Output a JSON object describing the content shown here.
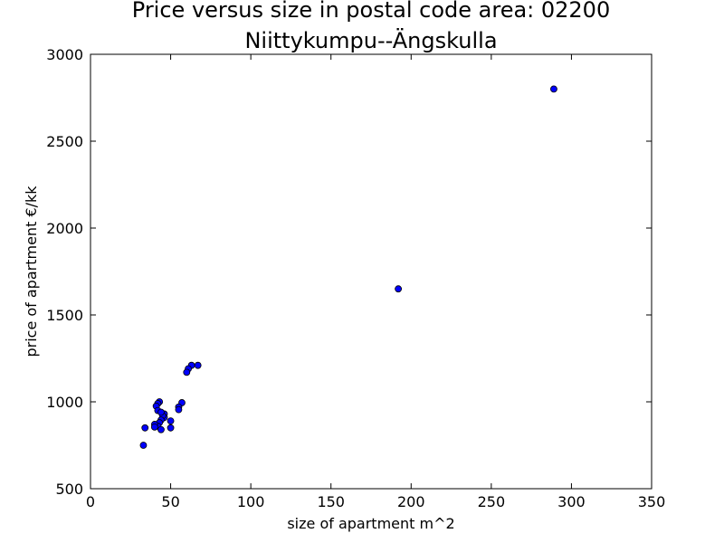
{
  "chart_data": {
    "type": "scatter",
    "title": "Price versus size in postal code area: 02200",
    "subtitle": "Niittykumpu--Ängskulla",
    "xlabel": "size of apartment m^2",
    "ylabel": "price of apartment €/kk",
    "xlim": [
      0,
      350
    ],
    "ylim": [
      500,
      3000
    ],
    "xticks": [
      0,
      50,
      100,
      150,
      200,
      250,
      300,
      350
    ],
    "yticks": [
      500,
      1000,
      1500,
      2000,
      2500,
      3000
    ],
    "grid": false,
    "marker_color": "#0000ff",
    "series": [
      {
        "points": [
          {
            "x": 289,
            "y": 2800
          },
          {
            "x": 192,
            "y": 1650
          },
          {
            "x": 67,
            "y": 1210
          },
          {
            "x": 63,
            "y": 1210
          },
          {
            "x": 61,
            "y": 1190
          },
          {
            "x": 60,
            "y": 1170
          },
          {
            "x": 57,
            "y": 995
          },
          {
            "x": 55,
            "y": 970
          },
          {
            "x": 55,
            "y": 955
          },
          {
            "x": 50,
            "y": 890
          },
          {
            "x": 50,
            "y": 850
          },
          {
            "x": 46,
            "y": 930
          },
          {
            "x": 46,
            "y": 910
          },
          {
            "x": 45,
            "y": 920
          },
          {
            "x": 44,
            "y": 895
          },
          {
            "x": 43,
            "y": 1000
          },
          {
            "x": 42,
            "y": 990
          },
          {
            "x": 41,
            "y": 975
          },
          {
            "x": 42,
            "y": 950
          },
          {
            "x": 44,
            "y": 940
          },
          {
            "x": 43,
            "y": 880
          },
          {
            "x": 42,
            "y": 860
          },
          {
            "x": 40,
            "y": 870
          },
          {
            "x": 40,
            "y": 855
          },
          {
            "x": 44,
            "y": 840
          },
          {
            "x": 34,
            "y": 850
          },
          {
            "x": 33,
            "y": 750
          }
        ]
      }
    ]
  }
}
